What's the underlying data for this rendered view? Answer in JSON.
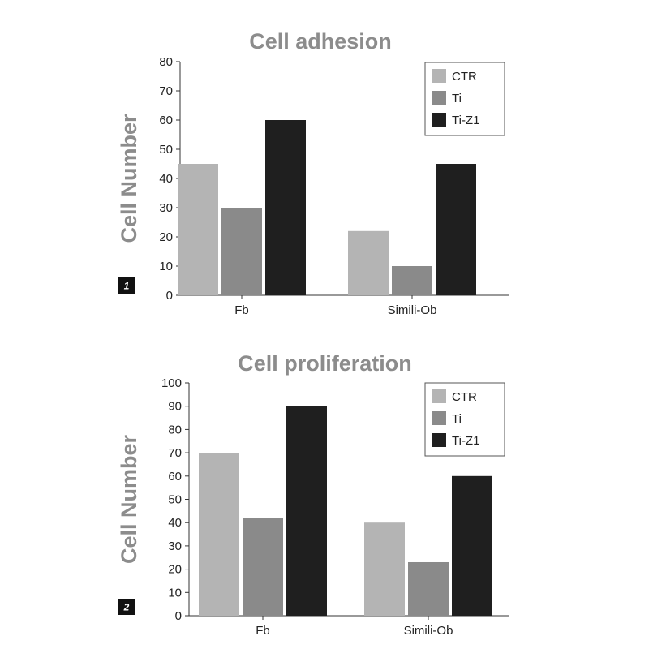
{
  "chart_data": [
    {
      "type": "bar",
      "panel_label": "1",
      "title": "Cell adhesion",
      "xlabel": "",
      "ylabel": "Cell Number",
      "ylim": [
        0,
        80
      ],
      "yticks": [
        "0",
        "10",
        "20",
        "30",
        "40",
        "50",
        "60",
        "70",
        "80"
      ],
      "categories": [
        "Fb",
        "Simili-Ob"
      ],
      "legend_position": "top-right",
      "series": [
        {
          "name": "CTR",
          "color": "#b4b4b4",
          "values": [
            45,
            22
          ]
        },
        {
          "name": "Ti",
          "color": "#8a8a8a",
          "values": [
            30,
            10
          ]
        },
        {
          "name": "Ti-Z1",
          "color": "#1f1f1f",
          "values": [
            60,
            45
          ]
        }
      ]
    },
    {
      "type": "bar",
      "panel_label": "2",
      "title": "Cell proliferation",
      "xlabel": "",
      "ylabel": "Cell Number",
      "ylim": [
        0,
        100
      ],
      "yticks": [
        "0",
        "10",
        "20",
        "30",
        "40",
        "50",
        "60",
        "70",
        "80",
        "90",
        "100"
      ],
      "categories": [
        "Fb",
        "Simili-Ob"
      ],
      "legend_position": "top-right",
      "series": [
        {
          "name": "CTR",
          "color": "#b4b4b4",
          "values": [
            70,
            40
          ]
        },
        {
          "name": "Ti",
          "color": "#8a8a8a",
          "values": [
            42,
            23
          ]
        },
        {
          "name": "Ti-Z1",
          "color": "#1f1f1f",
          "values": [
            90,
            60
          ]
        }
      ]
    }
  ]
}
